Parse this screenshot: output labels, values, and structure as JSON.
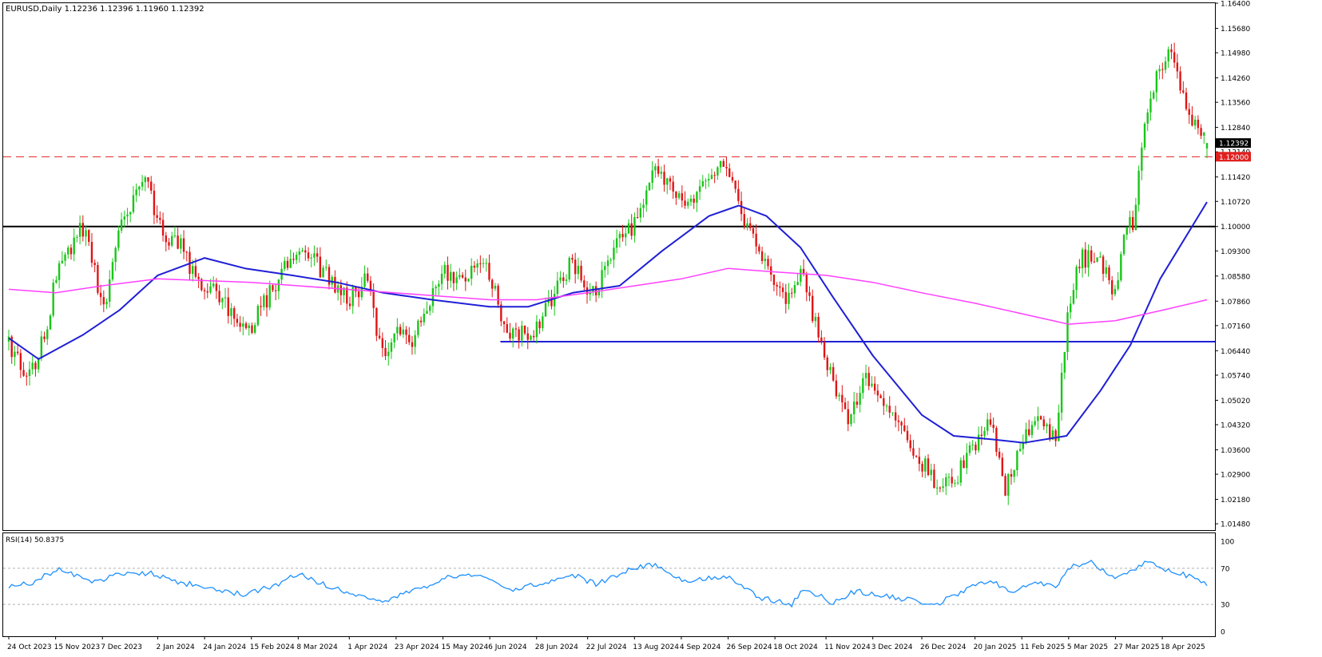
{
  "header": {
    "symbol_line": "EURUSD,Daily  1.12236 1.12396 1.11960 1.12392"
  },
  "chart_data": {
    "type": "candlestick",
    "symbol": "EURUSD",
    "timeframe": "Daily",
    "ohlc_last": {
      "open": 1.12236,
      "high": 1.12396,
      "low": 1.1196,
      "close": 1.12392
    },
    "ylim": [
      1.013,
      1.164
    ],
    "y_ticks": [
      "1.16400",
      "1.15680",
      "1.14980",
      "1.14260",
      "1.13560",
      "1.12840",
      "1.12140",
      "1.11420",
      "1.10720",
      "1.10000",
      "1.09300",
      "1.08580",
      "1.07860",
      "1.07160",
      "1.06440",
      "1.05740",
      "1.05020",
      "1.04320",
      "1.03600",
      "1.02900",
      "1.02180",
      "1.01480"
    ],
    "x_ticks": [
      "24 Oct 2023",
      "15 Nov 2023",
      "7 Dec 2023",
      "2 Jan 2024",
      "24 Jan 2024",
      "15 Feb 2024",
      "8 Mar 2024",
      "1 Apr 2024",
      "23 Apr 2024",
      "15 May 2024",
      "6 Jun 2024",
      "28 Jun 2024",
      "22 Jul 2024",
      "13 Aug 2024",
      "4 Sep 2024",
      "26 Sep 2024",
      "18 Oct 2024",
      "11 Nov 2024",
      "3 Dec 2024",
      "26 Dec 2024",
      "20 Jan 2025",
      "11 Feb 2025",
      "5 Mar 2025",
      "27 Mar 2025",
      "18 Apr 2025"
    ],
    "price_labels": {
      "current": "1.12392",
      "level": "1.12000"
    },
    "lines": {
      "dashed_level": 1.12,
      "black_level": 1.1,
      "blue_level": {
        "value": 1.067,
        "from": "11 Jun 2024"
      }
    },
    "anchors": [
      [
        "24 Oct 2023",
        1.067
      ],
      [
        "2 Nov 2023",
        1.056
      ],
      [
        "10 Nov 2023",
        1.069
      ],
      [
        "16 Nov 2023",
        1.088
      ],
      [
        "28 Nov 2023",
        1.1
      ],
      [
        "8 Dec 2023",
        1.075
      ],
      [
        "14 Dec 2023",
        1.099
      ],
      [
        "28 Dec 2023",
        1.113
      ],
      [
        "5 Jan 2024",
        1.095
      ],
      [
        "10 Jan 2024",
        1.098
      ],
      [
        "18 Jan 2024",
        1.087
      ],
      [
        "2 Feb 2024",
        1.078
      ],
      [
        "14 Feb 2024",
        1.071
      ],
      [
        "27 Feb 2024",
        1.084
      ],
      [
        "8 Mar 2024",
        1.094
      ],
      [
        "20 Mar 2024",
        1.087
      ],
      [
        "1 Apr 2024",
        1.079
      ],
      [
        "10 Apr 2024",
        1.086
      ],
      [
        "16 Apr 2024",
        1.063
      ],
      [
        "25 Apr 2024",
        1.07
      ],
      [
        "1 May 2024",
        1.068
      ],
      [
        "15 May 2024",
        1.088
      ],
      [
        "24 May 2024",
        1.084
      ],
      [
        "4 Jun 2024",
        1.09
      ],
      [
        "14 Jun 2024",
        1.07
      ],
      [
        "26 Jun 2024",
        1.069
      ],
      [
        "8 Jul 2024",
        1.083
      ],
      [
        "15 Jul 2024",
        1.09
      ],
      [
        "24 Jul 2024",
        1.08
      ],
      [
        "2 Aug 2024",
        1.092
      ],
      [
        "13 Aug 2024",
        1.101
      ],
      [
        "23 Aug 2024",
        1.118
      ],
      [
        "6 Sep 2024",
        1.106
      ],
      [
        "18 Sep 2024",
        1.114
      ],
      [
        "25 Sep 2024",
        1.118
      ],
      [
        "3 Oct 2024",
        1.103
      ],
      [
        "14 Oct 2024",
        1.09
      ],
      [
        "23 Oct 2024",
        1.079
      ],
      [
        "31 Oct 2024",
        1.088
      ],
      [
        "6 Nov 2024",
        1.072
      ],
      [
        "14 Nov 2024",
        1.056
      ],
      [
        "22 Nov 2024",
        1.044
      ],
      [
        "29 Nov 2024",
        1.057
      ],
      [
        "10 Dec 2024",
        1.05
      ],
      [
        "20 Dec 2024",
        1.039
      ],
      [
        "2 Jan 2025",
        1.025
      ],
      [
        "10 Jan 2025",
        1.026
      ],
      [
        "15 Jan 2025",
        1.033
      ],
      [
        "27 Jan 2025",
        1.045
      ],
      [
        "3 Feb 2025",
        1.025
      ],
      [
        "12 Feb 2025",
        1.04
      ],
      [
        "19 Feb 2025",
        1.046
      ],
      [
        "27 Feb 2025",
        1.039
      ],
      [
        "5 Mar 2025",
        1.078
      ],
      [
        "11 Mar 2025",
        1.091
      ],
      [
        "19 Mar 2025",
        1.09
      ],
      [
        "27 Mar 2025",
        1.081
      ],
      [
        "2 Apr 2025",
        1.103
      ],
      [
        "4 Apr 2025",
        1.098
      ],
      [
        "11 Apr 2025",
        1.135
      ],
      [
        "21 Apr 2025",
        1.151
      ],
      [
        "30 Apr 2025",
        1.133
      ],
      [
        "9 May 2025",
        1.123
      ]
    ],
    "candle_count": 405,
    "overlays": [
      {
        "name": "",
        "color": "#1f1fd6",
        "points": [
          [
            "24 Oct 2023",
            1.068
          ],
          [
            "7 Nov 2023",
            1.062
          ],
          [
            "28 Nov 2023",
            1.069
          ],
          [
            "15 Dec 2023",
            1.076
          ],
          [
            "2 Jan 2024",
            1.086
          ],
          [
            "24 Jan 2024",
            1.091
          ],
          [
            "12 Feb 2024",
            1.088
          ],
          [
            "5 Mar 2024",
            1.086
          ],
          [
            "26 Mar 2024",
            1.084
          ],
          [
            "17 Apr 2024",
            1.081
          ],
          [
            "10 May 2024",
            1.079
          ],
          [
            "6 Jun 2024",
            1.077
          ],
          [
            "24 Jun 2024",
            1.077
          ],
          [
            "15 Jul 2024",
            1.081
          ],
          [
            "6 Aug 2024",
            1.083
          ],
          [
            "26 Aug 2024",
            1.093
          ],
          [
            "17 Sep 2024",
            1.103
          ],
          [
            "1 Oct 2024",
            1.106
          ],
          [
            "14 Oct 2024",
            1.103
          ],
          [
            "30 Oct 2024",
            1.094
          ],
          [
            "14 Nov 2024",
            1.08
          ],
          [
            "3 Dec 2024",
            1.063
          ],
          [
            "26 Dec 2024",
            1.046
          ],
          [
            "10 Jan 2025",
            1.04
          ],
          [
            "28 Jan 2025",
            1.039
          ],
          [
            "12 Feb 2025",
            1.038
          ],
          [
            "4 Mar 2025",
            1.04
          ],
          [
            "20 Mar 2025",
            1.053
          ],
          [
            "3 Apr 2025",
            1.066
          ],
          [
            "17 Apr 2025",
            1.085
          ],
          [
            "9 May 2025",
            1.107
          ]
        ]
      },
      {
        "name": "",
        "color": "#ff40ff",
        "points": [
          [
            "24 Oct 2023",
            1.082
          ],
          [
            "15 Nov 2023",
            1.081
          ],
          [
            "7 Dec 2023",
            1.083
          ],
          [
            "2 Jan 2024",
            1.085
          ],
          [
            "15 Feb 2024",
            1.084
          ],
          [
            "8 Mar 2024",
            1.083
          ],
          [
            "15 May 2024",
            1.08
          ],
          [
            "6 Jun 2024",
            1.079
          ],
          [
            "28 Jun 2024",
            1.079
          ],
          [
            "22 Jul 2024",
            1.081
          ],
          [
            "4 Sep 2024",
            1.085
          ],
          [
            "26 Sep 2024",
            1.088
          ],
          [
            "18 Oct 2024",
            1.087
          ],
          [
            "11 Nov 2024",
            1.086
          ],
          [
            "3 Dec 2024",
            1.084
          ],
          [
            "26 Dec 2024",
            1.081
          ],
          [
            "20 Jan 2025",
            1.078
          ],
          [
            "11 Feb 2025",
            1.075
          ],
          [
            "5 Mar 2025",
            1.072
          ],
          [
            "27 Mar 2025",
            1.073
          ],
          [
            "18 Apr 2025",
            1.076
          ],
          [
            "9 May 2025",
            1.079
          ]
        ]
      }
    ],
    "rsi": {
      "label": "RSI(14) 50.8375",
      "value": 50.8375,
      "ylim": [
        0,
        100
      ],
      "ticks": [
        "100",
        "70",
        "30",
        "0"
      ],
      "levels": [
        70,
        30
      ],
      "points": [
        [
          "24 Oct 2023",
          50
        ],
        [
          "5 Nov 2023",
          55
        ],
        [
          "16 Nov 2023",
          70
        ],
        [
          "1 Dec 2023",
          55
        ],
        [
          "14 Dec 2023",
          62
        ],
        [
          "29 Dec 2023",
          65
        ],
        [
          "10 Jan 2024",
          55
        ],
        [
          "24 Jan 2024",
          50
        ],
        [
          "12 Feb 2024",
          40
        ],
        [
          "1 Mar 2024",
          55
        ],
        [
          "8 Mar 2024",
          65
        ],
        [
          "20 Mar 2024",
          52
        ],
        [
          "2 Apr 2024",
          42
        ],
        [
          "15 Apr 2024",
          32
        ],
        [
          "1 May 2024",
          45
        ],
        [
          "17 May 2024",
          60
        ],
        [
          "4 Jun 2024",
          62
        ],
        [
          "14 Jun 2024",
          45
        ],
        [
          "28 Jun 2024",
          52
        ],
        [
          "15 Jul 2024",
          63
        ],
        [
          "26 Jul 2024",
          52
        ],
        [
          "10 Aug 2024",
          68
        ],
        [
          "23 Aug 2024",
          75
        ],
        [
          "6 Sep 2024",
          55
        ],
        [
          "25 Sep 2024",
          62
        ],
        [
          "10 Oct 2024",
          38
        ],
        [
          "26 Oct 2024",
          30
        ],
        [
          "1 Nov 2024",
          48
        ],
        [
          "14 Nov 2024",
          32
        ],
        [
          "25 Nov 2024",
          45
        ],
        [
          "5 Dec 2024",
          40
        ],
        [
          "20 Dec 2024",
          35
        ],
        [
          "2 Jan 2025",
          30
        ],
        [
          "15 Jan 2025",
          45
        ],
        [
          "27 Jan 2025",
          58
        ],
        [
          "5 Feb 2025",
          43
        ],
        [
          "18 Feb 2025",
          55
        ],
        [
          "27 Feb 2025",
          48
        ],
        [
          "6 Mar 2025",
          72
        ],
        [
          "15 Mar 2025",
          78
        ],
        [
          "25 Mar 2025",
          60
        ],
        [
          "2 Apr 2025",
          65
        ],
        [
          "11 Apr 2025",
          78
        ],
        [
          "21 Apr 2025",
          68
        ],
        [
          "30 Apr 2025",
          62
        ],
        [
          "9 May 2025",
          51
        ]
      ]
    }
  }
}
